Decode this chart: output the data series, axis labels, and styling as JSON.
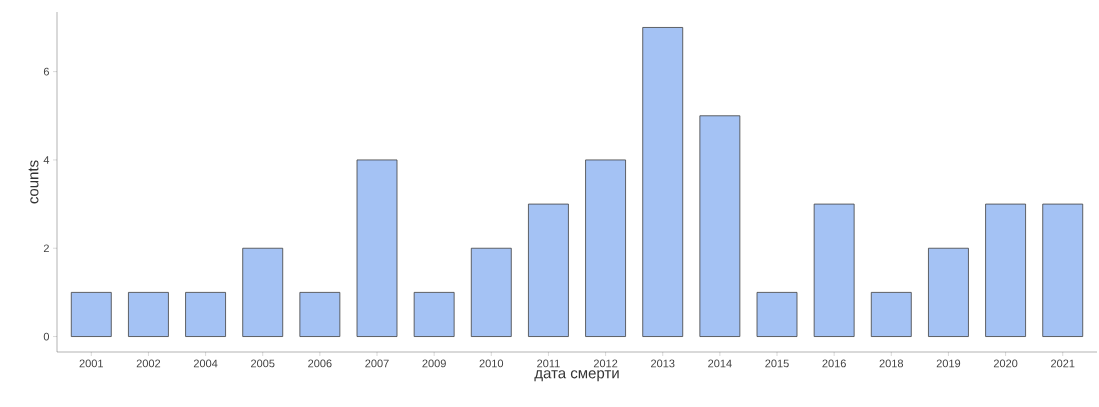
{
  "chart_data": {
    "type": "bar",
    "xlabel": "дата смерти",
    "ylabel": "counts",
    "categories": [
      "2001",
      "2002",
      "2004",
      "2005",
      "2006",
      "2007",
      "2009",
      "2010",
      "2011",
      "2012",
      "2013",
      "2014",
      "2015",
      "2016",
      "2018",
      "2019",
      "2020",
      "2021"
    ],
    "values": [
      1,
      1,
      1,
      2,
      1,
      4,
      1,
      2,
      3,
      4,
      7,
      5,
      1,
      3,
      1,
      2,
      3,
      3
    ],
    "color": "#a4c2f4",
    "ylim": [
      -0.35,
      7.35
    ],
    "yticks": [
      0,
      2,
      4,
      6
    ],
    "grid": false
  }
}
